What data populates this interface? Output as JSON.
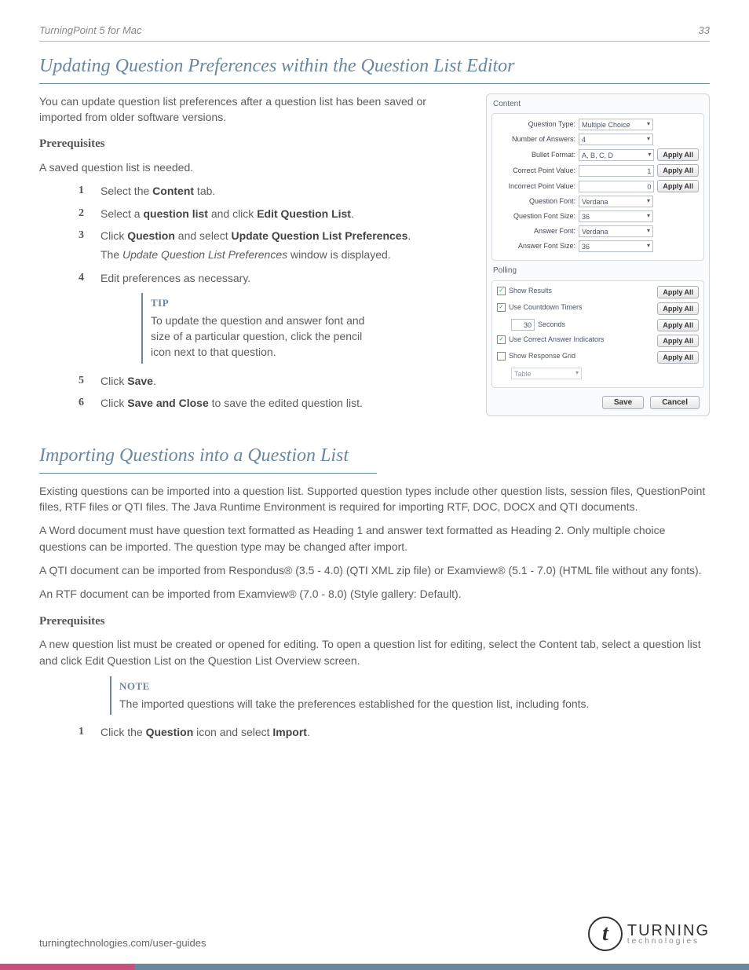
{
  "header": {
    "doc_title": "TurningPoint 5 for Mac",
    "page_number": "33"
  },
  "section1": {
    "title": "Updating Question Preferences within the Question List Editor",
    "intro": "You can update question list preferences after a question list has been saved or imported from older software versions.",
    "prereq_label": "Prerequisites",
    "prereq_text": "A saved question list is needed.",
    "steps": {
      "s1_a": "Select the ",
      "s1_b": "Content",
      "s1_c": " tab.",
      "s2_a": "Select a ",
      "s2_b": "question list",
      "s2_c": " and click ",
      "s2_d": "Edit Question List",
      "s2_e": ".",
      "s3_a": "Click ",
      "s3_b": "Question",
      "s3_c": " and select ",
      "s3_d": "Update Question List Preferences",
      "s3_e": ".",
      "s3_sub_a": "The ",
      "s3_sub_b": "Update Question List Preferences",
      "s3_sub_c": " window is displayed.",
      "s4": "Edit preferences as necessary.",
      "s5_a": "Click ",
      "s5_b": "Save",
      "s5_c": ".",
      "s6_a": "Click ",
      "s6_b": "Save and Close",
      "s6_c": " to save the edited question list."
    },
    "tip": {
      "label": "TIP",
      "text": "To update the question and answer font and size of a particular question, click the pencil icon next to that question."
    }
  },
  "dialog": {
    "content_label": "Content",
    "rows": [
      {
        "label": "Question Type:",
        "value": "Multiple Choice",
        "type": "sel",
        "apply": false
      },
      {
        "label": "Number of Answers:",
        "value": "4",
        "type": "sel",
        "apply": false
      },
      {
        "label": "Bullet Format:",
        "value": "A, B, C, D",
        "type": "sel",
        "apply": true
      },
      {
        "label": "Correct Point Value:",
        "value": "1",
        "type": "txt",
        "apply": true
      },
      {
        "label": "Incorrect Point Value:",
        "value": "0",
        "type": "txt",
        "apply": true
      },
      {
        "label": "Question Font:",
        "value": "Verdana",
        "type": "sel",
        "apply": false
      },
      {
        "label": "Question Font Size:",
        "value": "36",
        "type": "sel",
        "apply": false
      },
      {
        "label": "Answer Font:",
        "value": "Verdana",
        "type": "sel",
        "apply": false
      },
      {
        "label": "Answer Font Size:",
        "value": "36",
        "type": "sel",
        "apply": false
      }
    ],
    "polling_label": "Polling",
    "polling": {
      "show_results": "Show Results",
      "countdown": "Use Countdown Timers",
      "seconds_val": "30",
      "seconds_lbl": "Seconds",
      "indicators": "Use Correct Answer Indicators",
      "grid": "Show Response Grid",
      "grid_type": "Table"
    },
    "apply_all": "Apply All",
    "save": "Save",
    "cancel": "Cancel"
  },
  "section2": {
    "title": "Importing Questions into a Question List",
    "p1": "Existing questions can be imported into a question list. Supported question types include other question lists, session files, QuestionPoint files, RTF files or QTI files. The Java Runtime Environment is required for importing RTF, DOC, DOCX and QTI documents.",
    "p2": "A Word document must have question text formatted as Heading 1 and answer text formatted as Heading 2. Only multiple choice questions can be imported. The question type may be changed after import.",
    "p3": "A QTI document can be imported from Respondus® (3.5 - 4.0) (QTI XML zip file) or Examview® (5.1 - 7.0) (HTML file without any fonts).",
    "p4": "An RTF document can be imported from Examview® (7.0 - 8.0) (Style gallery: Default).",
    "prereq_label": "Prerequisites",
    "prereq_text": "A new question list must be created or opened for editing. To open a question list for editing, select the Content tab, select a question list and click Edit Question List on the Question List Overview screen.",
    "note": {
      "label": "NOTE",
      "text": "The imported questions will take the preferences established for the question list, including fonts."
    },
    "step1_a": "Click the ",
    "step1_b": "Question",
    "step1_c": " icon and select ",
    "step1_d": "Import",
    "step1_e": "."
  },
  "footer": {
    "url": "turningtechnologies.com/user-guides",
    "logo1": "TURNING",
    "logo2": "technologies"
  }
}
